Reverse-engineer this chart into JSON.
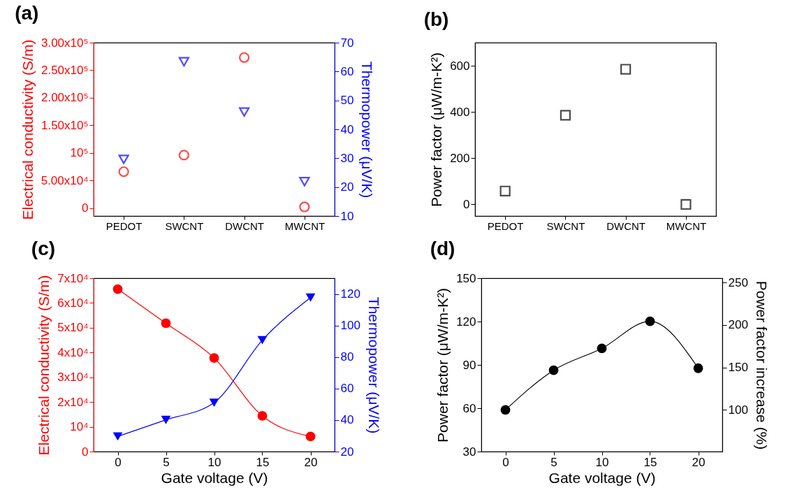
{
  "chart_data": [
    {
      "type": "scatter",
      "title": "(a)",
      "categories": [
        "PEDOT",
        "SWCNT",
        "DWCNT",
        "MWCNT"
      ],
      "ylabel": "Electrical conductivity (S/m)",
      "y2label": "Thermopower (μV/K)",
      "ylim": [
        -14500,
        300000
      ],
      "yticks": [
        0,
        {
          "value": 50000,
          "label": "5.00x10⁴"
        },
        {
          "value": 100000,
          "label": "10⁵"
        },
        {
          "value": 150000,
          "label": "1.50x10⁵"
        },
        {
          "value": 200000,
          "label": "2.00x10⁵"
        },
        {
          "value": 250000,
          "label": "2.50x10⁵"
        },
        {
          "value": 300000,
          "label": "3.00x10⁵"
        }
      ],
      "y2lim": [
        10,
        70
      ],
      "y2ticks": [
        10,
        20,
        30,
        40,
        50,
        60,
        70
      ],
      "series": [
        {
          "color": "#ff0000",
          "marker": "circle",
          "values": [
            66000,
            96000,
            273000,
            2000
          ]
        },
        {
          "color": "#0000ff",
          "marker": "triangle",
          "axis": "y2",
          "values": [
            29.6,
            63.4,
            46,
            21.9
          ]
        }
      ]
    },
    {
      "type": "scatter",
      "title": "(b)",
      "categories": [
        "PEDOT",
        "SWCNT",
        "DWCNT",
        "MWCNT"
      ],
      "ylabel": "Power factor (μW/m-K²)",
      "ylim": [
        -50,
        700
      ],
      "yticks": [
        0,
        200,
        400,
        600
      ],
      "series": [
        {
          "color": "#000000",
          "marker": "square",
          "values": [
            58,
            386,
            585,
            0
          ]
        }
      ]
    },
    {
      "type": "line",
      "title": "(c)",
      "x": [
        0,
        5,
        10,
        15,
        20
      ],
      "xlim": [
        -2.5,
        22.5
      ],
      "xticks": [
        0,
        5,
        10,
        15,
        20
      ],
      "xlabel": "Gate voltage (V)",
      "ylabel": "Electrical conductivity (S/m)",
      "y2label": "Thermopower (μV/K)",
      "ylim": [
        0,
        70000
      ],
      "yticks": [
        0,
        {
          "value": 10000,
          "label": "10⁴"
        },
        {
          "value": 20000,
          "label": "2x10⁴"
        },
        {
          "value": 30000,
          "label": "3x10⁴"
        },
        {
          "value": 40000,
          "label": "4x10⁴"
        },
        {
          "value": 50000,
          "label": "5x10⁴"
        },
        {
          "value": 60000,
          "label": "6x10⁴"
        },
        {
          "value": 70000,
          "label": "7x10⁴"
        }
      ],
      "y2lim": [
        20,
        130
      ],
      "y2ticks": [
        20,
        40,
        60,
        80,
        100,
        120
      ],
      "series": [
        {
          "color": "#ff0000",
          "marker": "circle",
          "values": [
            65600,
            51800,
            37800,
            14400,
            6100
          ]
        },
        {
          "color": "#0000ff",
          "marker": "triangle",
          "axis": "y2",
          "values": [
            29.6,
            40.1,
            51,
            90.7,
            117.7
          ]
        }
      ]
    },
    {
      "type": "line",
      "title": "(d)",
      "x": [
        0,
        5,
        10,
        15,
        20
      ],
      "xlim": [
        -2.5,
        22.5
      ],
      "xticks": [
        0,
        5,
        10,
        15,
        20
      ],
      "xlabel": "Gate voltage (V)",
      "ylabel": "Power factor (μW/m-K²)",
      "y2label": "Power factor increase (%)",
      "ylim": [
        30,
        150
      ],
      "yticks": [
        30,
        60,
        90,
        120,
        150
      ],
      "y2lim": [
        51,
        255
      ],
      "y2ticks": [
        100,
        150,
        200,
        250
      ],
      "series": [
        {
          "color": "#000000",
          "marker": "circle",
          "values": [
            58.8,
            86.3,
            101.4,
            120.2,
            87.7
          ]
        }
      ]
    }
  ]
}
